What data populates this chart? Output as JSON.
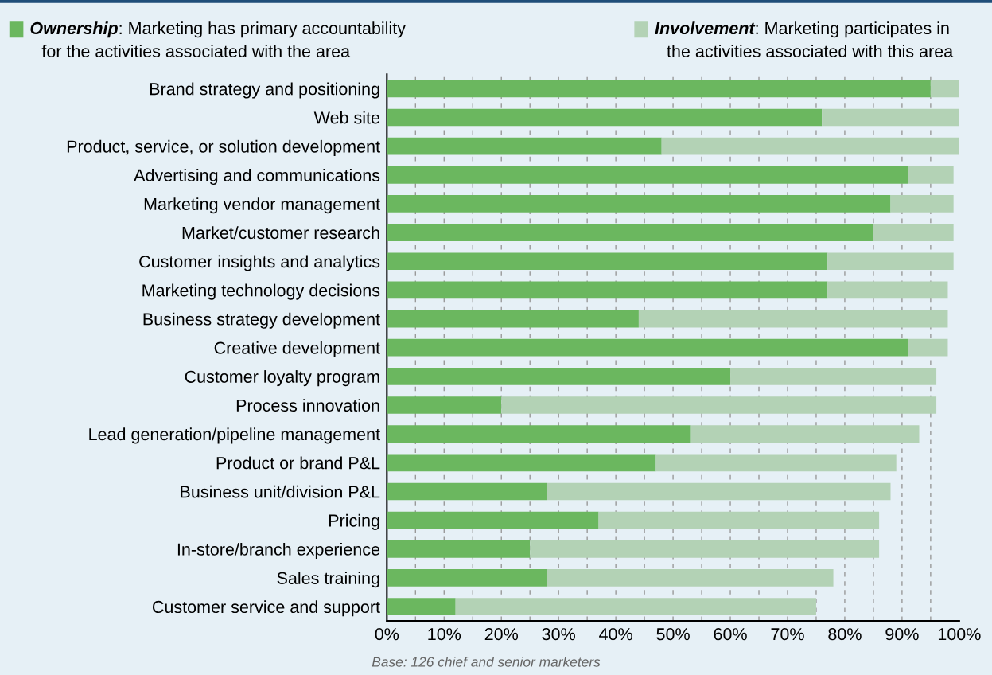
{
  "chart_data": {
    "type": "bar",
    "orientation": "horizontal",
    "stacked": true,
    "categories": [
      "Brand strategy and positioning",
      "Web site",
      "Product, service, or solution development",
      "Advertising and communications",
      "Marketing vendor management",
      "Market/customer research",
      "Customer insights and analytics",
      "Marketing technology decisions",
      "Business strategy development",
      "Creative development",
      "Customer loyalty program",
      "Process innovation",
      "Lead generation/pipeline management",
      "Product or brand P&L",
      "Business unit/division P&L",
      "Pricing",
      "In-store/branch experience",
      "Sales training",
      "Customer service and support"
    ],
    "series": [
      {
        "name": "Ownership: Marketing has primary accountability\nfor the activities associated with the area",
        "color": "#6bb75f",
        "values": [
          95,
          76,
          48,
          91,
          88,
          85,
          77,
          77,
          44,
          91,
          60,
          20,
          53,
          47,
          28,
          37,
          25,
          28,
          12
        ]
      },
      {
        "name": "Involvement: Marketing participates in\nthe activities associated with this area",
        "color": "#b3d2b5",
        "values": [
          5,
          24,
          52,
          8,
          11,
          14,
          22,
          21,
          54,
          7,
          36,
          76,
          40,
          42,
          60,
          49,
          61,
          50,
          63
        ]
      }
    ],
    "xlim": [
      0,
      100
    ],
    "xticks": [
      {
        "value": 0,
        "label": "0%"
      },
      {
        "value": 5,
        "label": null
      },
      {
        "value": 10,
        "label": "10%"
      },
      {
        "value": 15,
        "label": null
      },
      {
        "value": 20,
        "label": "20%"
      },
      {
        "value": 25,
        "label": null
      },
      {
        "value": 30,
        "label": "30%"
      },
      {
        "value": 35,
        "label": null
      },
      {
        "value": 40,
        "label": "40%"
      },
      {
        "value": 45,
        "label": null
      },
      {
        "value": 50,
        "label": "50%"
      },
      {
        "value": 55,
        "label": null
      },
      {
        "value": 60,
        "label": "60%"
      },
      {
        "value": 65,
        "label": null
      },
      {
        "value": 70,
        "label": "70%"
      },
      {
        "value": 75,
        "label": null
      },
      {
        "value": 80,
        "label": "80%"
      },
      {
        "value": 85,
        "label": null
      },
      {
        "value": 90,
        "label": "90%"
      },
      {
        "value": 95,
        "label": null
      },
      {
        "value": 100,
        "label": "100%"
      }
    ],
    "grid": "x",
    "legend": "top",
    "annotations": [
      "Base: 126 chief and senior marketers"
    ]
  }
}
